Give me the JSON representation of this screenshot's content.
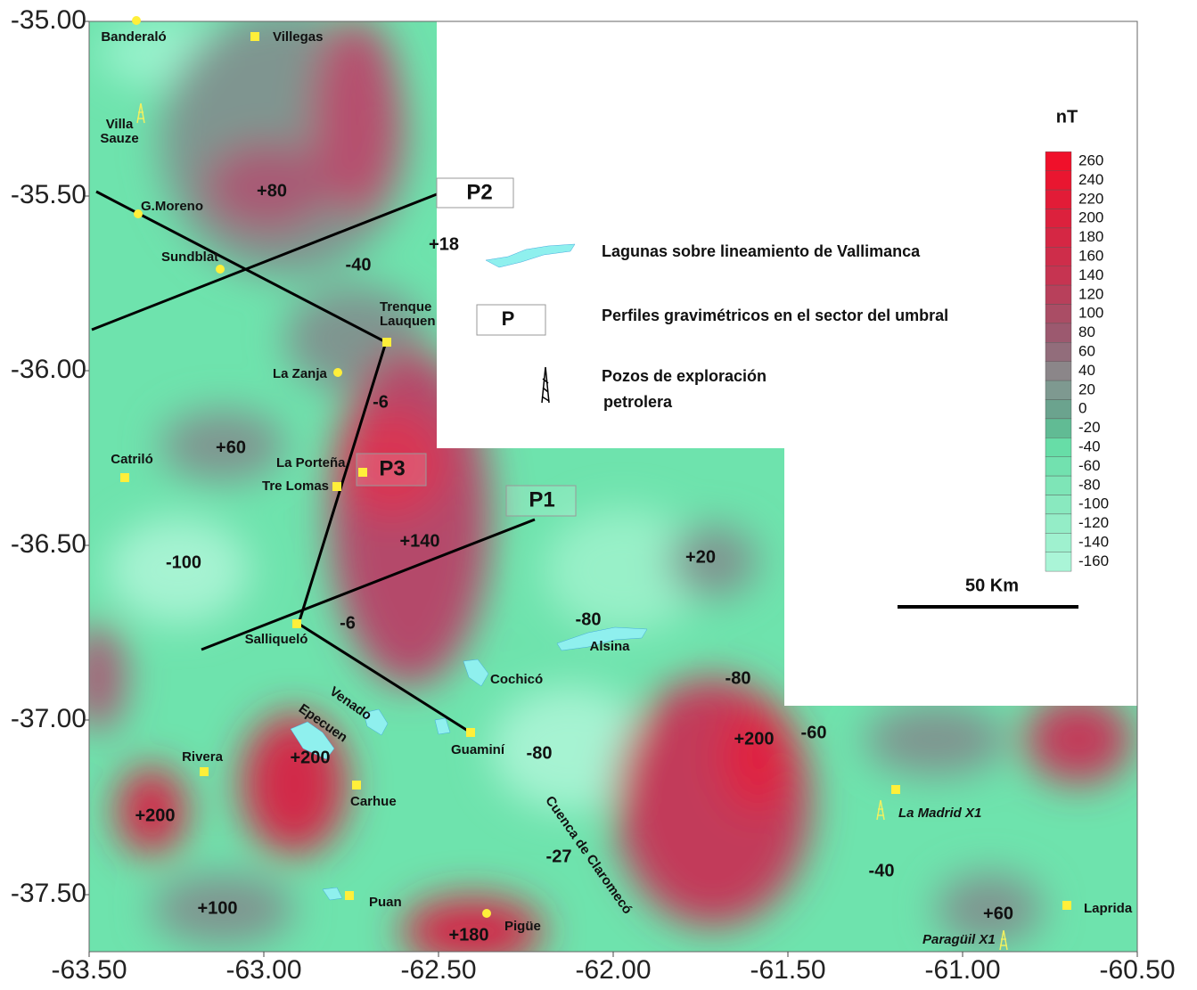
{
  "map": {
    "xticks": [
      {
        "value": -63.5,
        "label": "-63.50"
      },
      {
        "value": -63.0,
        "label": "-63.00"
      },
      {
        "value": -62.5,
        "label": "-62.50"
      },
      {
        "value": -62.0,
        "label": "-62.00"
      },
      {
        "value": -61.5,
        "label": "-61.50"
      },
      {
        "value": -61.0,
        "label": "-61.00"
      },
      {
        "value": -60.5,
        "label": "-60.50"
      }
    ],
    "yticks": [
      {
        "value": -35.0,
        "label": "-35.00"
      },
      {
        "value": -35.5,
        "label": "-35.50"
      },
      {
        "value": -36.0,
        "label": "-36.00"
      },
      {
        "value": -36.5,
        "label": "-36.50"
      },
      {
        "value": -37.0,
        "label": "-37.00"
      },
      {
        "value": -37.5,
        "label": "-37.50"
      }
    ],
    "colorbar": {
      "title": "nT",
      "ticks": [
        260,
        240,
        220,
        200,
        180,
        160,
        140,
        120,
        100,
        80,
        60,
        40,
        20,
        0,
        -20,
        -40,
        -60,
        -80,
        -100,
        -120,
        -140,
        -160
      ]
    },
    "anomalies": [
      "+80",
      "+18",
      "-40",
      "-6",
      "+60",
      "+140",
      "-100",
      "+20",
      "-80",
      "-6",
      "-80",
      "+200",
      "-60",
      "-80",
      "+200",
      "+200",
      "-27",
      "-40",
      "+100",
      "+180",
      "+60"
    ],
    "profiles": [
      "P2",
      "P3",
      "P1"
    ],
    "places": [
      {
        "lines": [
          "Banderaló"
        ]
      },
      {
        "lines": [
          "Villegas"
        ]
      },
      {
        "lines": [
          "Villa",
          "Sauze"
        ]
      },
      {
        "lines": [
          "G.Moreno"
        ]
      },
      {
        "lines": [
          "Sundblat"
        ]
      },
      {
        "lines": [
          "Trenque",
          "Lauquen"
        ]
      },
      {
        "lines": [
          "La Zanja"
        ]
      },
      {
        "lines": [
          "Catriló"
        ]
      },
      {
        "lines": [
          "La Porteña"
        ]
      },
      {
        "lines": [
          "Tre Lomas"
        ]
      },
      {
        "lines": [
          "Salliqueló"
        ]
      },
      {
        "lines": [
          "Venado"
        ]
      },
      {
        "lines": [
          "Epecuen"
        ]
      },
      {
        "lines": [
          "Cochicó"
        ]
      },
      {
        "lines": [
          "Alsina"
        ]
      },
      {
        "lines": [
          "Guaminí"
        ]
      },
      {
        "lines": [
          "Rivera"
        ]
      },
      {
        "lines": [
          "Carhue"
        ]
      },
      {
        "lines": [
          "Cuenca de Claromecó"
        ]
      },
      {
        "lines": [
          "La Madrid X1"
        ]
      },
      {
        "lines": [
          "Laprida"
        ]
      },
      {
        "lines": [
          "Puan"
        ]
      },
      {
        "lines": [
          "Pigüe"
        ]
      },
      {
        "lines": [
          "Paragüil X1"
        ]
      }
    ],
    "legend": {
      "lagoons": "Lagunas sobre lineamiento de Vallimanca",
      "profile_symbol": "P",
      "profiles": "Perfiles gravimétricos en el sector del umbral",
      "wells": [
        "Pozos de exploración",
        "petrolera"
      ]
    },
    "scale": "50 Km"
  }
}
